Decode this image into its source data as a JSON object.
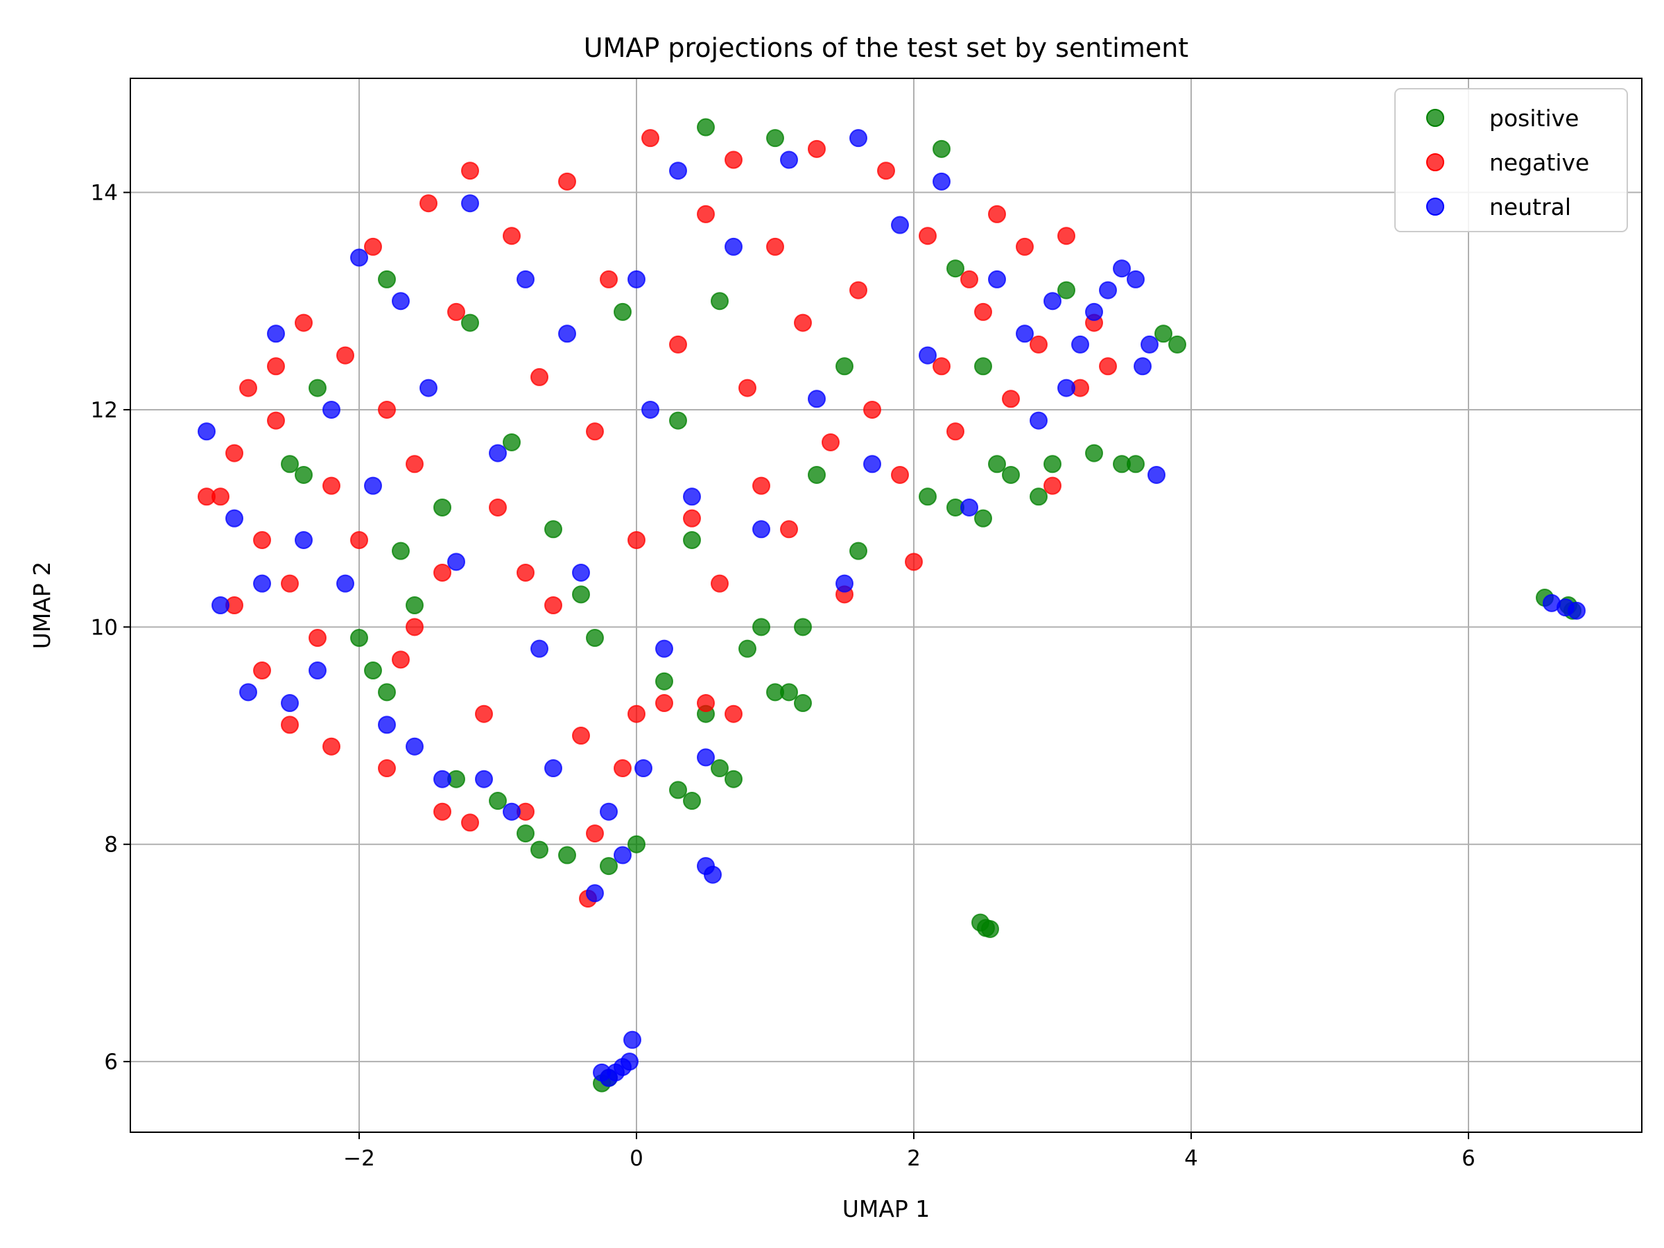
{
  "chart_data": {
    "type": "scatter",
    "title": "UMAP projections of the test set by sentiment",
    "xlabel": "UMAP 1",
    "ylabel": "UMAP 2",
    "xlim": [
      -3.65,
      7.25
    ],
    "ylim": [
      5.35,
      15.05
    ],
    "xticks": [
      -2,
      0,
      2,
      4,
      6
    ],
    "xtick_labels": [
      "−2",
      "0",
      "2",
      "4",
      "6"
    ],
    "yticks": [
      6,
      8,
      10,
      12,
      14
    ],
    "ytick_labels": [
      "6",
      "8",
      "10",
      "12",
      "14"
    ],
    "grid": true,
    "legend_placement": "top-right",
    "marker_alpha": 0.75,
    "series": [
      {
        "name": "positive",
        "color": "#008000",
        "points": [
          [
            -2.5,
            11.5
          ],
          [
            -2.4,
            11.4
          ],
          [
            -2.0,
            9.9
          ],
          [
            -1.9,
            9.6
          ],
          [
            -1.8,
            9.4
          ],
          [
            -1.7,
            10.7
          ],
          [
            -1.6,
            10.2
          ],
          [
            -1.3,
            8.6
          ],
          [
            -1.0,
            8.4
          ],
          [
            -0.8,
            8.1
          ],
          [
            -0.7,
            7.95
          ],
          [
            -0.5,
            7.9
          ],
          [
            -0.4,
            10.3
          ],
          [
            -0.2,
            7.8
          ],
          [
            0.0,
            8.0
          ],
          [
            0.2,
            9.5
          ],
          [
            0.3,
            8.5
          ],
          [
            0.4,
            8.4
          ],
          [
            0.5,
            9.2
          ],
          [
            0.6,
            8.7
          ],
          [
            0.7,
            8.6
          ],
          [
            0.8,
            9.8
          ],
          [
            0.9,
            10.0
          ],
          [
            1.0,
            9.4
          ],
          [
            1.1,
            9.4
          ],
          [
            1.2,
            10.0
          ],
          [
            1.2,
            9.3
          ],
          [
            1.6,
            10.7
          ],
          [
            2.1,
            11.2
          ],
          [
            2.3,
            11.1
          ],
          [
            2.5,
            11.0
          ],
          [
            2.5,
            12.4
          ],
          [
            2.6,
            11.5
          ],
          [
            2.7,
            11.4
          ],
          [
            2.9,
            11.2
          ],
          [
            3.0,
            11.5
          ],
          [
            3.3,
            11.6
          ],
          [
            3.5,
            11.5
          ],
          [
            3.6,
            11.5
          ],
          [
            3.8,
            12.7
          ],
          [
            3.9,
            12.6
          ],
          [
            2.2,
            14.4
          ],
          [
            0.5,
            14.6
          ],
          [
            1.0,
            14.5
          ],
          [
            -1.8,
            13.2
          ],
          [
            -1.2,
            12.8
          ],
          [
            -0.1,
            12.9
          ],
          [
            0.6,
            13.0
          ],
          [
            1.5,
            12.4
          ],
          [
            2.3,
            13.3
          ],
          [
            3.1,
            13.1
          ],
          [
            -2.3,
            12.2
          ],
          [
            -0.9,
            11.7
          ],
          [
            0.3,
            11.9
          ],
          [
            1.3,
            11.4
          ],
          [
            -1.4,
            11.1
          ],
          [
            -0.6,
            10.9
          ],
          [
            0.4,
            10.8
          ],
          [
            -0.3,
            9.9
          ],
          [
            2.48,
            7.28
          ],
          [
            2.52,
            7.23
          ],
          [
            2.55,
            7.22
          ],
          [
            -0.25,
            5.8
          ],
          [
            -0.2,
            5.85
          ],
          [
            6.55,
            10.27
          ],
          [
            6.72,
            10.2
          ],
          [
            6.75,
            10.15
          ]
        ]
      },
      {
        "name": "negative",
        "color": "#ff0000",
        "points": [
          [
            -3.0,
            11.2
          ],
          [
            -2.9,
            11.6
          ],
          [
            -2.8,
            12.2
          ],
          [
            -2.7,
            10.8
          ],
          [
            -2.6,
            11.9
          ],
          [
            -2.6,
            12.4
          ],
          [
            -2.5,
            10.4
          ],
          [
            -2.4,
            12.8
          ],
          [
            -2.3,
            9.9
          ],
          [
            -2.2,
            11.3
          ],
          [
            -2.1,
            12.5
          ],
          [
            -2.0,
            10.8
          ],
          [
            -1.9,
            13.5
          ],
          [
            -1.8,
            12.0
          ],
          [
            -1.7,
            9.7
          ],
          [
            -1.6,
            11.5
          ],
          [
            -1.5,
            13.9
          ],
          [
            -1.4,
            10.5
          ],
          [
            -1.3,
            12.9
          ],
          [
            -1.2,
            14.2
          ],
          [
            -1.1,
            9.2
          ],
          [
            -1.0,
            11.1
          ],
          [
            -0.9,
            13.6
          ],
          [
            -0.8,
            8.3
          ],
          [
            -0.7,
            12.3
          ],
          [
            -0.6,
            10.2
          ],
          [
            -0.5,
            14.1
          ],
          [
            -0.4,
            9.0
          ],
          [
            -0.35,
            7.5
          ],
          [
            -0.3,
            11.8
          ],
          [
            -0.2,
            13.2
          ],
          [
            -0.1,
            8.7
          ],
          [
            0.0,
            10.8
          ],
          [
            0.1,
            14.5
          ],
          [
            0.2,
            9.3
          ],
          [
            0.3,
            12.6
          ],
          [
            0.4,
            11.0
          ],
          [
            0.5,
            13.8
          ],
          [
            0.6,
            10.4
          ],
          [
            0.7,
            14.3
          ],
          [
            0.8,
            12.2
          ],
          [
            0.9,
            11.3
          ],
          [
            1.0,
            13.5
          ],
          [
            1.1,
            10.9
          ],
          [
            1.2,
            12.8
          ],
          [
            1.3,
            14.4
          ],
          [
            1.4,
            11.7
          ],
          [
            1.5,
            10.3
          ],
          [
            1.6,
            13.1
          ],
          [
            1.7,
            12.0
          ],
          [
            1.8,
            14.2
          ],
          [
            1.9,
            11.4
          ],
          [
            2.0,
            10.6
          ],
          [
            2.1,
            13.6
          ],
          [
            2.2,
            12.4
          ],
          [
            2.3,
            11.8
          ],
          [
            2.4,
            13.2
          ],
          [
            2.5,
            12.9
          ],
          [
            2.6,
            13.8
          ],
          [
            2.7,
            12.1
          ],
          [
            2.8,
            13.5
          ],
          [
            2.9,
            12.6
          ],
          [
            3.0,
            11.3
          ],
          [
            3.1,
            13.6
          ],
          [
            3.2,
            12.2
          ],
          [
            3.3,
            12.8
          ],
          [
            3.4,
            12.4
          ],
          [
            -2.2,
            8.9
          ],
          [
            -2.5,
            9.1
          ],
          [
            -1.8,
            8.7
          ],
          [
            -1.4,
            8.3
          ],
          [
            -1.2,
            8.2
          ],
          [
            -0.3,
            8.1
          ],
          [
            0.0,
            9.2
          ],
          [
            0.5,
            9.3
          ],
          [
            0.7,
            9.2
          ],
          [
            -1.6,
            10.0
          ],
          [
            -0.8,
            10.5
          ],
          [
            -2.7,
            9.6
          ],
          [
            -2.9,
            10.2
          ],
          [
            -3.1,
            11.2
          ]
        ]
      },
      {
        "name": "neutral",
        "color": "#0000ff",
        "points": [
          [
            -3.1,
            11.8
          ],
          [
            -3.0,
            10.2
          ],
          [
            -2.9,
            11.0
          ],
          [
            -2.8,
            9.4
          ],
          [
            -2.7,
            10.4
          ],
          [
            -2.6,
            12.7
          ],
          [
            -2.5,
            9.3
          ],
          [
            -2.4,
            10.8
          ],
          [
            -2.3,
            9.6
          ],
          [
            -2.2,
            12.0
          ],
          [
            -2.1,
            10.4
          ],
          [
            -2.0,
            13.4
          ],
          [
            -1.9,
            11.3
          ],
          [
            -1.8,
            9.1
          ],
          [
            -1.7,
            13.0
          ],
          [
            -1.6,
            8.9
          ],
          [
            -1.5,
            12.2
          ],
          [
            -1.4,
            8.6
          ],
          [
            -1.3,
            10.6
          ],
          [
            -1.2,
            13.9
          ],
          [
            -1.1,
            8.6
          ],
          [
            -1.0,
            11.6
          ],
          [
            -0.9,
            8.3
          ],
          [
            -0.8,
            13.2
          ],
          [
            -0.7,
            9.8
          ],
          [
            -0.6,
            8.7
          ],
          [
            -0.5,
            12.7
          ],
          [
            -0.4,
            10.5
          ],
          [
            -0.3,
            7.55
          ],
          [
            -0.2,
            8.3
          ],
          [
            -0.1,
            7.9
          ],
          [
            0.0,
            13.2
          ],
          [
            0.05,
            8.7
          ],
          [
            0.1,
            12.0
          ],
          [
            0.2,
            9.8
          ],
          [
            0.3,
            14.2
          ],
          [
            0.4,
            11.2
          ],
          [
            0.5,
            8.8
          ],
          [
            0.5,
            7.8
          ],
          [
            0.55,
            7.72
          ],
          [
            0.7,
            13.5
          ],
          [
            0.9,
            10.9
          ],
          [
            1.1,
            14.3
          ],
          [
            1.3,
            12.1
          ],
          [
            1.5,
            10.4
          ],
          [
            1.6,
            14.5
          ],
          [
            1.7,
            11.5
          ],
          [
            1.9,
            13.7
          ],
          [
            2.1,
            12.5
          ],
          [
            2.2,
            14.1
          ],
          [
            2.4,
            11.1
          ],
          [
            2.6,
            13.2
          ],
          [
            2.8,
            12.7
          ],
          [
            2.9,
            11.9
          ],
          [
            3.0,
            13.0
          ],
          [
            3.1,
            12.2
          ],
          [
            3.2,
            12.6
          ],
          [
            3.3,
            12.9
          ],
          [
            3.4,
            13.1
          ],
          [
            3.5,
            13.3
          ],
          [
            3.6,
            13.2
          ],
          [
            3.7,
            12.6
          ],
          [
            3.75,
            11.4
          ],
          [
            3.65,
            12.4
          ],
          [
            -0.15,
            5.9
          ],
          [
            -0.1,
            5.95
          ],
          [
            -0.05,
            6.0
          ],
          [
            -0.03,
            6.2
          ],
          [
            -0.2,
            5.85
          ],
          [
            -0.25,
            5.9
          ],
          [
            6.6,
            10.22
          ],
          [
            6.7,
            10.18
          ],
          [
            6.78,
            10.15
          ]
        ]
      }
    ]
  }
}
